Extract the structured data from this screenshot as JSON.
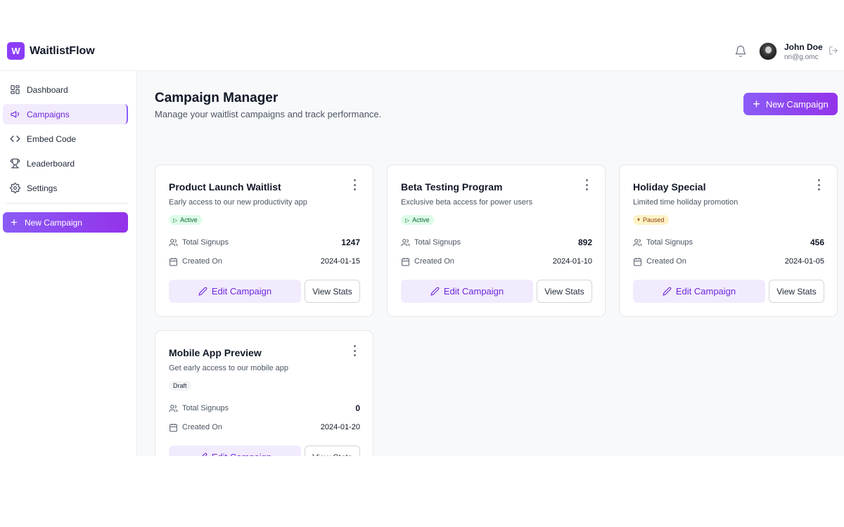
{
  "header": {
    "logo_letter": "W",
    "brand": "WaitlistFlow",
    "user_name": "John Doe",
    "user_email": "nn@g.omc"
  },
  "sidebar": {
    "items": [
      {
        "label": "Dashboard",
        "icon": "dashboard-icon"
      },
      {
        "label": "Campaigns",
        "icon": "megaphone-icon",
        "active": true
      },
      {
        "label": "Embed Code",
        "icon": "code-icon"
      },
      {
        "label": "Leaderboard",
        "icon": "trophy-icon"
      },
      {
        "label": "Settings",
        "icon": "gear-icon"
      }
    ],
    "new_campaign_label": "New Campaign"
  },
  "main": {
    "title": "Campaign Manager",
    "subtitle": "Manage your waitlist campaigns and track performance.",
    "new_campaign_label": "New Campaign",
    "signups_label": "Total Signups",
    "created_label": "Created On",
    "edit_label": "Edit Campaign",
    "view_label": "View Stats",
    "campaigns": [
      {
        "title": "Product Launch Waitlist",
        "description": "Early access to our new productivity app",
        "status": "Active",
        "signups": "1247",
        "created": "2024-01-15"
      },
      {
        "title": "Beta Testing Program",
        "description": "Exclusive beta access for power users",
        "status": "Active",
        "signups": "892",
        "created": "2024-01-10"
      },
      {
        "title": "Holiday Special",
        "description": "Limited time holiday promotion",
        "status": "Paused",
        "signups": "456",
        "created": "2024-01-05"
      },
      {
        "title": "Mobile App Preview",
        "description": "Get early access to our mobile app",
        "status": "Draft",
        "signups": "0",
        "created": "2024-01-20"
      }
    ]
  },
  "colors": {
    "accent": "#8b5cf6",
    "accent_dark": "#6d28d9",
    "active_badge": "#dcfce7",
    "paused_badge": "#fef3c7",
    "draft_badge": "#f3f4f6"
  }
}
